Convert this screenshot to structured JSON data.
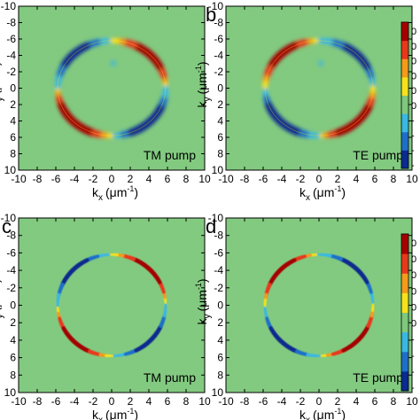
{
  "chart_data": [
    {
      "type": "heatmap",
      "panel_label": "",
      "annotation": "TM pump",
      "xlabel": "k",
      "xlabel_sub": "x",
      "xlabel_unit": "(μm",
      "xlabel_exp": "-1",
      "ylabel": "k",
      "ylabel_sub": "y",
      "ylabel_unit": "(μm",
      "ylabel_exp": "-1",
      "xlim": [
        -10,
        10
      ],
      "ylim": [
        -10,
        10
      ],
      "x_ticks": [
        "-10",
        "-8",
        "-6",
        "-4",
        "-2",
        "0",
        "2",
        "4",
        "6",
        "8",
        "10"
      ],
      "y_ticks": [
        "-10",
        "-8",
        "-6",
        "-4",
        "-2",
        "0",
        "2",
        "4",
        "6",
        "8",
        "10"
      ],
      "ring_radius": 5.8,
      "pattern": "ring, positive upper-right (0-90°) and lower-left (180-270°), negative upper-left and lower-right; diffuse",
      "quadrant_signs": [
        1,
        -1,
        1,
        -1
      ]
    },
    {
      "type": "heatmap",
      "panel_label": "b",
      "annotation": "TE pump",
      "xlabel": "k",
      "xlabel_sub": "x",
      "xlabel_unit": "(μm",
      "xlabel_exp": "-1",
      "ylabel": "k",
      "ylabel_sub": "y",
      "ylabel_unit": "(μm",
      "ylabel_exp": "-1",
      "xlim": [
        -10,
        10
      ],
      "ylim": [
        -10,
        10
      ],
      "x_ticks": [
        "-10",
        "-8",
        "-6",
        "-4",
        "-2",
        "0",
        "2",
        "4",
        "6",
        "8",
        "10"
      ],
      "y_ticks": [
        "-10",
        "-8",
        "-6",
        "-4",
        "-2",
        "0",
        "2",
        "4",
        "6",
        "8",
        "10"
      ],
      "ring_radius": 5.8,
      "pattern": "ring, negative upper-right and lower-left, positive upper-left and lower-right; diffuse",
      "quadrant_signs": [
        -1,
        1,
        -1,
        1
      ],
      "colorbar_ticks": [
        "0",
        "0",
        "0",
        "0",
        "0",
        "0",
        "-",
        "-",
        "-",
        "-"
      ]
    },
    {
      "type": "heatmap",
      "panel_label": "c",
      "annotation": "TM pump",
      "xlabel": "k",
      "xlabel_sub": "x",
      "xlabel_unit": "(μm",
      "xlabel_exp": "-1",
      "ylabel": "k",
      "ylabel_sub": "y",
      "ylabel_unit": "(μm",
      "ylabel_exp": "-1",
      "xlim": [
        -10,
        10
      ],
      "ylim": [
        -10,
        10
      ],
      "x_ticks": [
        "-10",
        "-8",
        "-6",
        "-4",
        "-2",
        "0",
        "2",
        "4",
        "6",
        "8",
        "10"
      ],
      "y_ticks": [
        "-10",
        "-8",
        "-6",
        "-4",
        "-2",
        "0",
        "2",
        "4",
        "6",
        "8",
        "10"
      ],
      "ring_radius": 5.8,
      "pattern": "thin ring, positive upper-right and lower-left, negative upper-left and lower-right; sharp",
      "quadrant_signs": [
        1,
        -1,
        1,
        -1
      ]
    },
    {
      "type": "heatmap",
      "panel_label": "d",
      "annotation": "TE pump",
      "xlabel": "k",
      "xlabel_sub": "x",
      "xlabel_unit": "(μm",
      "xlabel_exp": "-1",
      "ylabel": "k",
      "ylabel_sub": "y",
      "ylabel_unit": "(μm",
      "ylabel_exp": "-1",
      "xlim": [
        -10,
        10
      ],
      "ylim": [
        -10,
        10
      ],
      "x_ticks": [
        "-10",
        "-8",
        "-6",
        "-4",
        "-2",
        "0",
        "2",
        "4",
        "6",
        "8",
        "10"
      ],
      "y_ticks": [
        "-10",
        "-8",
        "-6",
        "-4",
        "-2",
        "0",
        "2",
        "4",
        "6",
        "8",
        "10"
      ],
      "ring_radius": 5.8,
      "pattern": "thin ring, negative upper-right and lower-left, positive upper-left and lower-right; sharp",
      "quadrant_signs": [
        -1,
        1,
        -1,
        1
      ],
      "colorbar_ticks": [
        "0",
        "0",
        "0",
        "0",
        "0",
        "0",
        "-",
        "-",
        "-",
        "-"
      ]
    }
  ],
  "colors": {
    "background": "#7fc87d",
    "positive_strong": "#a50000",
    "positive": "#e8381c",
    "positive_weak": "#f7c51c",
    "negative_weak": "#3ab7e3",
    "negative": "#1f6fc9",
    "negative_strong": "#0a2b8f"
  },
  "colormap": [
    "#0a2b8f",
    "#1f6fc9",
    "#3ab7e3",
    "#7fc87d",
    "#f7e11c",
    "#f59a1c",
    "#e8381c",
    "#a50000"
  ]
}
